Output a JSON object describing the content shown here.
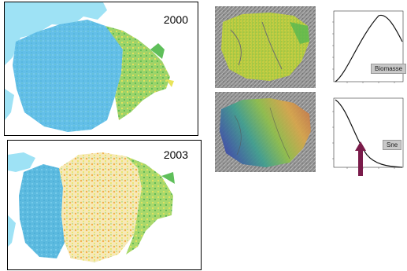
{
  "maps": [
    {
      "year": "2000"
    },
    {
      "year": "2003"
    }
  ],
  "charts": {
    "biomass": {
      "label": "Biomasse"
    },
    "snow": {
      "label": "Sne"
    }
  },
  "colors": {
    "water": "#8fdcf2",
    "snow_blue": "#4fb8e6",
    "green": "#5fbf5a",
    "yellow": "#e9e45a",
    "orange": "#f3b04a",
    "arrow": "#7a1b4a"
  }
}
